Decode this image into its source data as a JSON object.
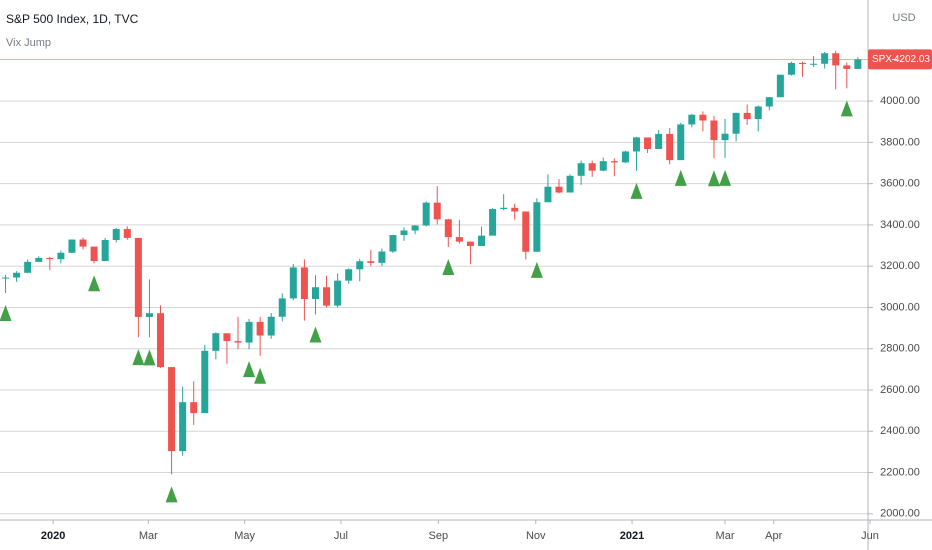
{
  "chart_data": {
    "type": "candlestick",
    "title": "S&P 500 Index, 1D, TVC",
    "indicator": "Vix Jump",
    "currency": "USD",
    "price_label": {
      "symbol": "SPX",
      "value": 4202.03
    },
    "open": [
      3143,
      3145,
      3168,
      3221,
      3240,
      3234,
      3265,
      3329,
      3295,
      3225,
      3327,
      3380,
      3337,
      2954,
      2972,
      2711,
      2304,
      2541,
      2488,
      2790,
      2875,
      2837,
      2830,
      2930,
      2864,
      2955,
      3044,
      3194,
      3041,
      3098,
      3009,
      3130,
      3185,
      3224,
      3216,
      3271,
      3351,
      3373,
      3397,
      3508,
      3427,
      3341,
      3319,
      3298,
      3348,
      3477,
      3483,
      3465,
      3270,
      3510,
      3585,
      3557,
      3638,
      3699,
      3663,
      3709,
      3703,
      3756,
      3824,
      3768,
      3841,
      3714,
      3887,
      3934,
      3906,
      3811,
      3842,
      3943,
      3913,
      3974,
      4019,
      4128,
      4185,
      4180,
      4181,
      4232,
      4173,
      4156
    ],
    "high": [
      3158,
      3176,
      3232,
      3248,
      3246,
      3276,
      3330,
      3338,
      3293,
      3337,
      3385,
      3393,
      3337,
      3136,
      3010,
      2711,
      2616,
      2642,
      2819,
      2880,
      2870,
      2954,
      2944,
      2954,
      2973,
      3068,
      3211,
      3233,
      3156,
      3154,
      3165,
      3190,
      3236,
      3280,
      3285,
      3352,
      3388,
      3399,
      3514,
      3588,
      3430,
      3425,
      3320,
      3392,
      3482,
      3549,
      3502,
      3466,
      3529,
      3645,
      3622,
      3645,
      3712,
      3712,
      3726,
      3723,
      3760,
      3826,
      3810,
      3859,
      3870,
      3894,
      3937,
      3950,
      3928,
      3914,
      3944,
      3983,
      3979,
      4020,
      4129,
      4191,
      4191,
      4218,
      4238,
      4245,
      4187,
      4213
    ],
    "low": [
      3070,
      3124,
      3166,
      3220,
      3181,
      3214,
      3263,
      3281,
      3214,
      3224,
      3315,
      3328,
      2856,
      2855,
      2707,
      2191,
      2281,
      2431,
      2496,
      2749,
      2727,
      2798,
      2798,
      2766,
      2848,
      2933,
      3035,
      2936,
      2966,
      2999,
      2999,
      3115,
      3127,
      3201,
      3200,
      3264,
      3323,
      3355,
      3393,
      3402,
      3293,
      3310,
      3209,
      3323,
      3354,
      3471,
      3425,
      3233,
      3279,
      3511,
      3553,
      3561,
      3594,
      3633,
      3660,
      3636,
      3700,
      3662,
      3749,
      3781,
      3694,
      3725,
      3873,
      3854,
      3723,
      3725,
      3805,
      3885,
      3853,
      3955,
      4020,
      4124,
      4118,
      4165,
      4158,
      4057,
      4062,
      4155
    ],
    "close": [
      3145,
      3168,
      3221,
      3240,
      3234,
      3265,
      3329,
      3295,
      3225,
      3327,
      3380,
      3337,
      2954,
      2972,
      2711,
      2304,
      2541,
      2488,
      2790,
      2875,
      2837,
      2830,
      2930,
      2864,
      2955,
      3044,
      3194,
      3041,
      3098,
      3009,
      3130,
      3185,
      3224,
      3216,
      3271,
      3351,
      3373,
      3397,
      3508,
      3427,
      3341,
      3319,
      3298,
      3348,
      3477,
      3483,
      3465,
      3270,
      3510,
      3585,
      3557,
      3638,
      3699,
      3663,
      3709,
      3703,
      3756,
      3824,
      3768,
      3841,
      3714,
      3887,
      3934,
      3906,
      3811,
      3842,
      3943,
      3913,
      3974,
      4019,
      4128,
      4185,
      4180,
      4181,
      4232,
      4173,
      4156,
      4202.03
    ],
    "signals": [
      0,
      8,
      12,
      13,
      15,
      22,
      23,
      28,
      40,
      48,
      57,
      61,
      64,
      65,
      76
    ],
    "up_color": "#26a69a",
    "down_color": "#ef5350",
    "signal_color": "#43a047",
    "xlim": [
      -0.5,
      79
    ],
    "xticks": [
      {
        "value": 4.3,
        "label": "2020"
      },
      {
        "value": 12.9,
        "label": "Mar"
      },
      {
        "value": 21.6,
        "label": "May"
      },
      {
        "value": 30.3,
        "label": "Jul"
      },
      {
        "value": 39.1,
        "label": "Sep"
      },
      {
        "value": 47.9,
        "label": "Nov"
      },
      {
        "value": 56.6,
        "label": "2021"
      },
      {
        "value": 65.0,
        "label": "Mar"
      },
      {
        "value": 69.4,
        "label": "Apr"
      },
      {
        "value": 78.1,
        "label": "Jun"
      }
    ],
    "ylim": [
      1970,
      4490
    ],
    "yticks": [
      {
        "value": 2000,
        "label": "2000.00"
      },
      {
        "value": 2200,
        "label": "2200.00"
      },
      {
        "value": 2400,
        "label": "2400.00"
      },
      {
        "value": 2600,
        "label": "2600.00"
      },
      {
        "value": 2800,
        "label": "2800.00"
      },
      {
        "value": 3000,
        "label": "3000.00"
      },
      {
        "value": 3200,
        "label": "3200.00"
      },
      {
        "value": 3400,
        "label": "3400.00"
      },
      {
        "value": 3600,
        "label": "3600.00"
      },
      {
        "value": 3800,
        "label": "3800.00"
      },
      {
        "value": 4000,
        "label": "4000.00"
      }
    ],
    "grid": true
  }
}
